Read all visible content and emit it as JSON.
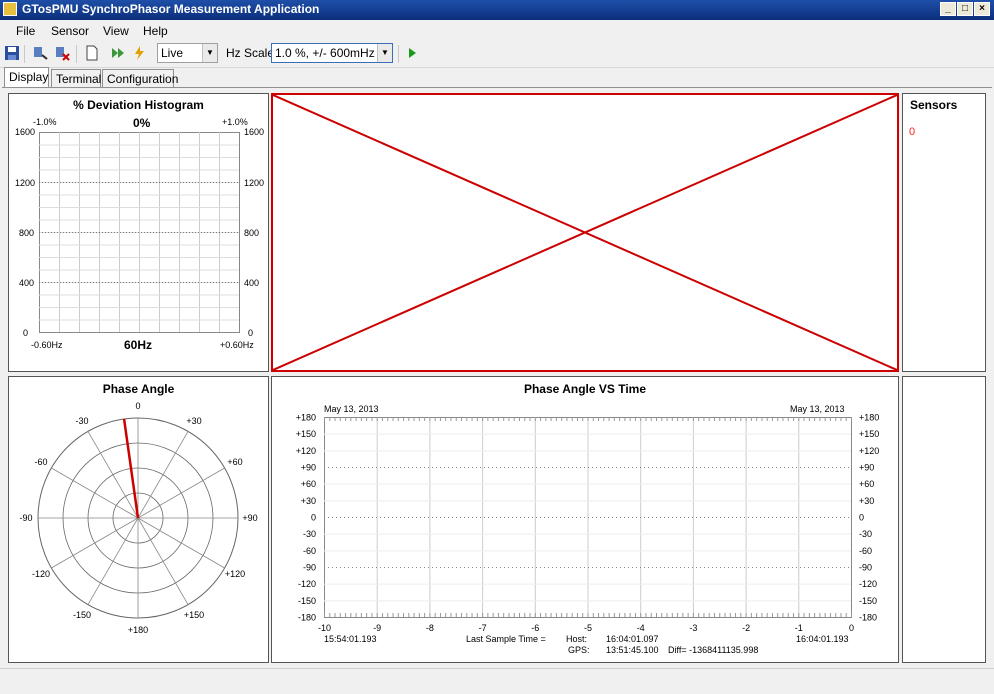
{
  "window": {
    "title": "GTosPMU SynchroPhasor Measurement Application"
  },
  "menu": [
    "File",
    "Sensor",
    "View",
    "Help"
  ],
  "toolbar": {
    "mode_value": "Live",
    "hz_scale_label": "Hz Scale",
    "hz_scale_value": "1.0 %, +/- 600mHz"
  },
  "tabs": [
    {
      "label": "Display",
      "active": true
    },
    {
      "label": "Terminal",
      "active": false
    },
    {
      "label": "Configuration",
      "active": false
    }
  ],
  "histogram": {
    "title": "% Deviation Histogram",
    "top_left": "-1.0%",
    "top_center": "0%",
    "top_right": "+1.0%",
    "bottom_left": "-0.60Hz",
    "bottom_center": "60Hz",
    "bottom_right": "+0.60Hz",
    "y_ticks": [
      "1600",
      "1200",
      "800",
      "400",
      "0"
    ]
  },
  "sensors": {
    "title": "Sensors",
    "values": [
      "0"
    ],
    "value_color": "#ff2020"
  },
  "phase_angle": {
    "title": "Phase Angle",
    "labels": [
      "0",
      "+30",
      "+60",
      "+90",
      "+120",
      "+150",
      "+180",
      "-150",
      "-120",
      "-90",
      "-60",
      "-30"
    ],
    "needle_angle_deg": -8,
    "needle_color": "#cc0000"
  },
  "phase_time": {
    "title": "Phase Angle VS Time",
    "date_left": "May 13, 2013",
    "date_right": "May 13, 2013",
    "y_ticks": [
      "+180",
      "+150",
      "+120",
      "+90",
      "+60",
      "+30",
      "0",
      "-30",
      "-60",
      "-90",
      "-120",
      "-150",
      "-180"
    ],
    "x_ticks": [
      "-10",
      "-9",
      "-8",
      "-7",
      "-6",
      "-5",
      "-4",
      "-3",
      "-2",
      "-1",
      "0"
    ],
    "time_left": "15:54:01.193",
    "time_right": "16:04:01.193",
    "last_sample_label": "Last Sample Time =",
    "host_label": "Host:",
    "host_time": "16:04:01.097",
    "gps_label": "GPS:",
    "gps_time": "13:51:45.100",
    "diff_text": "Diff= -1368411135.998"
  },
  "colors": {
    "broken_image": "#cc0000",
    "titlebar": "#0a2f7c"
  }
}
